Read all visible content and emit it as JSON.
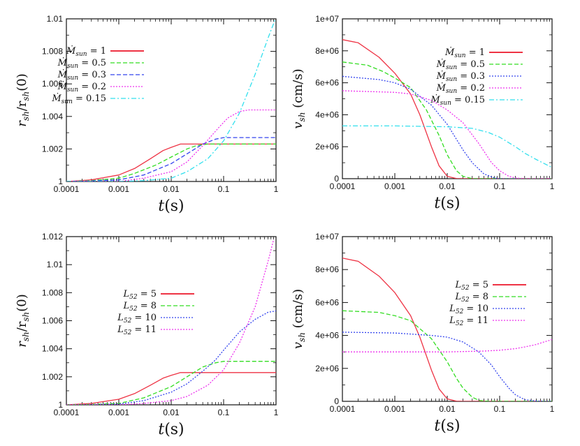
{
  "chart_data": [
    {
      "type": "line",
      "title": "",
      "xlabel": "t(s)",
      "ylabel": "r_sh/r_sh(0)",
      "xscale": "log",
      "xlim": [
        0.0001,
        1
      ],
      "ylim": [
        1,
        1.01
      ],
      "xticks": [
        "0.0001",
        "0.001",
        "0.01",
        "0.1",
        "1"
      ],
      "yticks": [
        "1",
        "1.002",
        "1.004",
        "1.006",
        "1.008",
        "1.01"
      ],
      "legend_position": "top-left",
      "series": [
        {
          "name": "Ṁ_sun = 1",
          "color": "#ee3344",
          "dash": "solid",
          "x": [
            0.0001,
            0.0003,
            0.001,
            0.002,
            0.004,
            0.007,
            0.01,
            0.015,
            0.02,
            0.05,
            0.1,
            0.3,
            1
          ],
          "y": [
            1.0,
            1.0001,
            1.0004,
            1.0008,
            1.0014,
            1.0019,
            1.0021,
            1.0023,
            1.0023,
            1.0023,
            1.0023,
            1.0023,
            1.0023
          ]
        },
        {
          "name": "Ṁ_sun = 0.5",
          "color": "#33dd22",
          "dash": "dashed",
          "x": [
            0.0001,
            0.0003,
            0.001,
            0.002,
            0.005,
            0.01,
            0.02,
            0.03,
            0.05,
            0.1,
            0.3,
            1
          ],
          "y": [
            1.0,
            1.00005,
            1.0002,
            1.0005,
            1.001,
            1.0015,
            1.002,
            1.0022,
            1.0023,
            1.0023,
            1.0023,
            1.0023
          ]
        },
        {
          "name": "Ṁ_sun = 0.3",
          "color": "#3344ee",
          "dash": "dashed",
          "x": [
            0.0001,
            0.0003,
            0.001,
            0.003,
            0.01,
            0.02,
            0.04,
            0.07,
            0.1,
            0.3,
            1
          ],
          "y": [
            1.0,
            1.00003,
            1.0001,
            1.0004,
            1.0011,
            1.0017,
            1.0023,
            1.0026,
            1.0027,
            1.0027,
            1.0027
          ]
        },
        {
          "name": "Ṁ_sun = 0.2",
          "color": "#ee33ee",
          "dash": "dotted",
          "x": [
            0.0001,
            0.001,
            0.003,
            0.01,
            0.02,
            0.04,
            0.08,
            0.12,
            0.2,
            0.3,
            1
          ],
          "y": [
            1.0,
            1.0,
            1.0002,
            1.0006,
            1.0012,
            1.0022,
            1.0033,
            1.0039,
            1.0043,
            1.0044,
            1.0044
          ]
        },
        {
          "name": "Ṁ_sun = 0.15",
          "color": "#33e0ee",
          "dash": "dashdot",
          "x": [
            0.0001,
            0.001,
            0.003,
            0.01,
            0.02,
            0.05,
            0.1,
            0.2,
            0.4,
            0.7,
            1
          ],
          "y": [
            1.0,
            1.0,
            1.00005,
            1.0002,
            1.0006,
            1.0014,
            1.0025,
            1.0042,
            1.0066,
            1.0088,
            1.0101
          ]
        }
      ],
      "legend_labels": [
        {
          "sym": "Ṁ",
          "sub": "sun",
          "rest": " = 1"
        },
        {
          "sym": "Ṁ",
          "sub": "sun",
          "rest": " = 0.5"
        },
        {
          "sym": "Ṁ",
          "sub": "sun",
          "rest": " = 0.3"
        },
        {
          "sym": "Ṁ",
          "sub": "sun",
          "rest": " = 0.2"
        },
        {
          "sym": "Ṁ",
          "sub": "sun",
          "rest": " = 0.15"
        }
      ]
    },
    {
      "type": "line",
      "title": "",
      "xlabel": "t(s)",
      "ylabel": "v_sh (cm/s)",
      "xscale": "log",
      "xlim": [
        0.0001,
        1
      ],
      "ylim": [
        0,
        10000000
      ],
      "xticks": [
        "0.0001",
        "0.001",
        "0.01",
        "0.1",
        "1"
      ],
      "yticks": [
        "0",
        "2e+06",
        "4e+06",
        "6e+06",
        "8e+06",
        "1e+07"
      ],
      "legend_position": "top-right",
      "series": [
        {
          "name": "Ṁ_sun = 1",
          "color": "#ee3344",
          "dash": "solid",
          "x": [
            0.0001,
            0.0002,
            0.0005,
            0.001,
            0.002,
            0.003,
            0.005,
            0.007,
            0.01,
            0.015,
            0.02,
            0.05,
            1
          ],
          "y": [
            8700000,
            8500000,
            7600000,
            6600000,
            5300000,
            4000000,
            2000000,
            800000,
            150000,
            10000,
            0,
            0,
            0
          ]
        },
        {
          "name": "Ṁ_sun = 0.5",
          "color": "#33dd22",
          "dash": "dashed",
          "x": [
            0.0001,
            0.0003,
            0.0006,
            0.001,
            0.002,
            0.004,
            0.007,
            0.01,
            0.015,
            0.02,
            0.03,
            0.05,
            1
          ],
          "y": [
            7300000,
            7100000,
            6700000,
            6300000,
            5700000,
            4300000,
            2700000,
            1500000,
            500000,
            150000,
            0,
            0,
            0
          ]
        },
        {
          "name": "Ṁ_sun = 0.3",
          "color": "#3344ee",
          "dash": "dotted",
          "x": [
            0.0001,
            0.0005,
            0.001,
            0.002,
            0.005,
            0.01,
            0.02,
            0.03,
            0.05,
            0.08,
            0.1,
            0.2,
            1
          ],
          "y": [
            6400000,
            6200000,
            6000000,
            5600000,
            4600000,
            3400000,
            1800000,
            1000000,
            300000,
            50000,
            0,
            0,
            0
          ]
        },
        {
          "name": "Ṁ_sun = 0.2",
          "color": "#ee33ee",
          "dash": "dotted",
          "x": [
            0.0001,
            0.001,
            0.002,
            0.005,
            0.01,
            0.02,
            0.04,
            0.07,
            0.1,
            0.15,
            0.2,
            0.3,
            1
          ],
          "y": [
            5500000,
            5400000,
            5300000,
            4900000,
            4300000,
            3500000,
            2200000,
            1000000,
            500000,
            150000,
            50000,
            0,
            0
          ]
        },
        {
          "name": "Ṁ_sun = 0.15",
          "color": "#33e0ee",
          "dash": "dashdot",
          "x": [
            0.0001,
            0.001,
            0.01,
            0.03,
            0.06,
            0.1,
            0.2,
            0.3,
            0.5,
            1
          ],
          "y": [
            3300000,
            3300000,
            3250000,
            3150000,
            2900000,
            2600000,
            2000000,
            1600000,
            1200000,
            700000
          ]
        }
      ],
      "legend_labels": [
        {
          "sym": "Ṁ",
          "sub": "sun",
          "rest": " = 1"
        },
        {
          "sym": "Ṁ",
          "sub": "sun",
          "rest": " = 0.5"
        },
        {
          "sym": "Ṁ",
          "sub": "sun",
          "rest": " = 0.3"
        },
        {
          "sym": "Ṁ",
          "sub": "sun",
          "rest": " = 0.2"
        },
        {
          "sym": "Ṁ",
          "sub": "sun",
          "rest": " = 0.15"
        }
      ]
    },
    {
      "type": "line",
      "title": "",
      "xlabel": "t(s)",
      "ylabel": "r_sh/r_sh(0)",
      "xscale": "log",
      "xlim": [
        0.0001,
        1
      ],
      "ylim": [
        1,
        1.012
      ],
      "xticks": [
        "0.0001",
        "0.001",
        "0.01",
        "0.1",
        "1"
      ],
      "yticks": [
        "1",
        "1.002",
        "1.004",
        "1.006",
        "1.008",
        "1.01",
        "1.012"
      ],
      "legend_position": "center-left",
      "series": [
        {
          "name": "L_52 = 5",
          "color": "#ee3344",
          "dash": "solid",
          "x": [
            0.0001,
            0.0003,
            0.001,
            0.002,
            0.004,
            0.007,
            0.01,
            0.015,
            0.02,
            0.05,
            1
          ],
          "y": [
            1.0,
            1.0001,
            1.0004,
            1.0008,
            1.0014,
            1.0019,
            1.0021,
            1.0023,
            1.0023,
            1.0023,
            1.0023
          ]
        },
        {
          "name": "L_52 = 8",
          "color": "#33dd22",
          "dash": "dashed",
          "x": [
            0.0001,
            0.0003,
            0.001,
            0.003,
            0.01,
            0.02,
            0.04,
            0.07,
            0.1,
            0.2,
            1
          ],
          "y": [
            1.0,
            1.00003,
            1.0001,
            1.0005,
            1.0013,
            1.002,
            1.0027,
            1.003,
            1.0031,
            1.0031,
            1.0031
          ]
        },
        {
          "name": "L_52 = 10",
          "color": "#3344ee",
          "dash": "dotted",
          "x": [
            0.0001,
            0.001,
            0.003,
            0.01,
            0.02,
            0.04,
            0.07,
            0.1,
            0.2,
            0.4,
            0.7,
            1
          ],
          "y": [
            1.0,
            1.00005,
            1.0003,
            1.0009,
            1.0015,
            1.0024,
            1.0032,
            1.0039,
            1.0052,
            1.0061,
            1.0066,
            1.0067
          ]
        },
        {
          "name": "L_52 = 11",
          "color": "#ee33ee",
          "dash": "dotted",
          "x": [
            0.0001,
            0.001,
            0.003,
            0.01,
            0.02,
            0.05,
            0.1,
            0.2,
            0.4,
            0.7,
            0.9
          ],
          "y": [
            1.0,
            1.0,
            1.0001,
            1.0003,
            1.0006,
            1.0014,
            1.0025,
            1.0044,
            1.007,
            1.0102,
            1.0118
          ]
        }
      ],
      "legend_labels": [
        {
          "sym": "L",
          "sub": "52",
          "rest": " = 5"
        },
        {
          "sym": "L",
          "sub": "52",
          "rest": " = 8"
        },
        {
          "sym": "L",
          "sub": "52",
          "rest": " = 10"
        },
        {
          "sym": "L",
          "sub": "52",
          "rest": " = 11"
        }
      ]
    },
    {
      "type": "line",
      "title": "",
      "xlabel": "t(s)",
      "ylabel": "v_sh (cm/s)",
      "xscale": "log",
      "xlim": [
        0.0001,
        1
      ],
      "ylim": [
        0,
        10000000
      ],
      "xticks": [
        "0.0001",
        "0.001",
        "0.01",
        "0.1",
        "1"
      ],
      "yticks": [
        "0",
        "2e+06",
        "4e+06",
        "6e+06",
        "8e+06",
        "1e+07"
      ],
      "legend_position": "top-right",
      "series": [
        {
          "name": "L_52 = 5",
          "color": "#ee3344",
          "dash": "solid",
          "x": [
            0.0001,
            0.0002,
            0.0005,
            0.001,
            0.002,
            0.003,
            0.005,
            0.007,
            0.01,
            0.015,
            0.02,
            0.05,
            1
          ],
          "y": [
            8700000,
            8500000,
            7600000,
            6600000,
            5200000,
            3900000,
            1900000,
            750000,
            150000,
            10000,
            0,
            0,
            0
          ]
        },
        {
          "name": "L_52 = 8",
          "color": "#33dd22",
          "dash": "dashed",
          "x": [
            0.0001,
            0.0005,
            0.001,
            0.002,
            0.005,
            0.01,
            0.015,
            0.02,
            0.03,
            0.04,
            0.06,
            0.1,
            1
          ],
          "y": [
            5500000,
            5400000,
            5200000,
            4900000,
            3800000,
            2400000,
            1400000,
            800000,
            250000,
            60000,
            0,
            0,
            0
          ]
        },
        {
          "name": "L_52 = 10",
          "color": "#3344ee",
          "dash": "dotted",
          "x": [
            0.0001,
            0.001,
            0.005,
            0.01,
            0.02,
            0.04,
            0.07,
            0.1,
            0.15,
            0.2,
            0.3,
            0.5,
            0.7,
            1
          ],
          "y": [
            4200000,
            4150000,
            4000000,
            3900000,
            3600000,
            3000000,
            2200000,
            1500000,
            800000,
            400000,
            100000,
            20000,
            0,
            0
          ]
        },
        {
          "name": "L_52 = 11",
          "color": "#ee33ee",
          "dash": "dotted",
          "x": [
            0.0001,
            0.001,
            0.01,
            0.05,
            0.1,
            0.2,
            0.3,
            0.5,
            0.7,
            1
          ],
          "y": [
            3000000,
            3000000,
            3000000,
            3050000,
            3100000,
            3200000,
            3300000,
            3450000,
            3600000,
            3750000
          ]
        }
      ],
      "legend_labels": [
        {
          "sym": "L",
          "sub": "52",
          "rest": " = 5"
        },
        {
          "sym": "L",
          "sub": "52",
          "rest": " = 8"
        },
        {
          "sym": "L",
          "sub": "52",
          "rest": " = 10"
        },
        {
          "sym": "L",
          "sub": "52",
          "rest": " = 11"
        }
      ]
    }
  ]
}
